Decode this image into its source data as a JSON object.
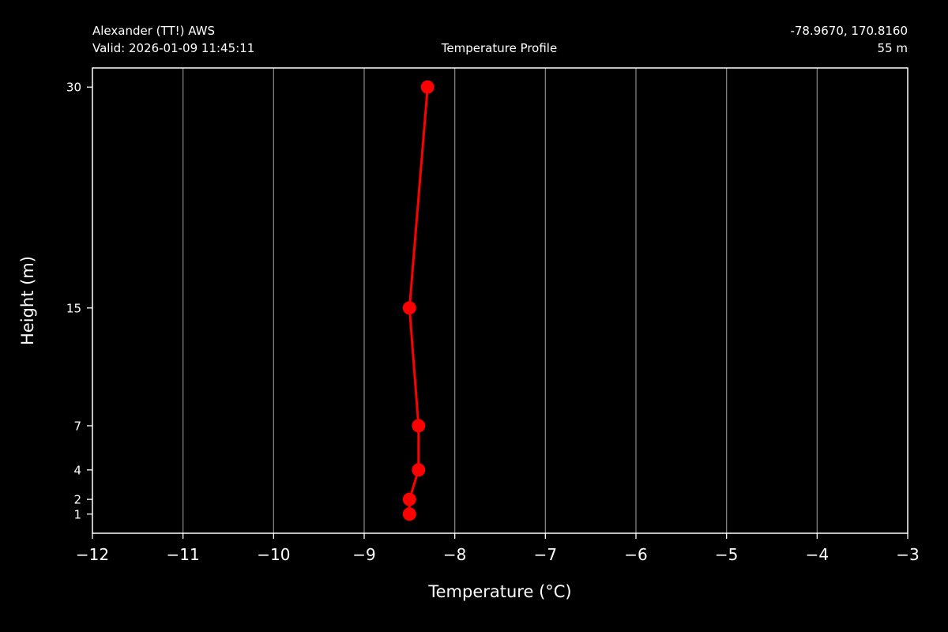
{
  "header": {
    "station": "Alexander (TT!) AWS",
    "valid": "Valid: 2026-01-09 11:45:11",
    "title": "Temperature Profile",
    "coords": "-78.9670, 170.8160",
    "elevation": "55 m"
  },
  "chart_data": {
    "type": "line",
    "title": "Temperature Profile",
    "xlabel": "Temperature (°C)",
    "ylabel": "Height (m)",
    "xlim": [
      -12,
      -3
    ],
    "ylim": [
      -0.3,
      31.3
    ],
    "x_ticks": [
      -12,
      -11,
      -10,
      -9,
      -8,
      -7,
      -6,
      -5,
      -4,
      -3
    ],
    "x_tick_labels": [
      "−12",
      "−11",
      "−10",
      "−9",
      "−8",
      "−7",
      "−6",
      "−5",
      "−4",
      "−3"
    ],
    "y_ticks": [
      1,
      2,
      4,
      7,
      15,
      30
    ],
    "y_tick_labels": [
      "1",
      "2",
      "4",
      "7",
      "15",
      "30"
    ],
    "grid": "vertical",
    "colors": {
      "background": "#000000",
      "series": "#ff0000",
      "grid": "#808080",
      "axes": "#ffffff"
    },
    "series": [
      {
        "x": [
          -8.5,
          -8.5,
          -8.4,
          -8.4,
          -8.5,
          -8.3
        ],
        "y": [
          1,
          2,
          4,
          7,
          15,
          30
        ]
      }
    ]
  }
}
